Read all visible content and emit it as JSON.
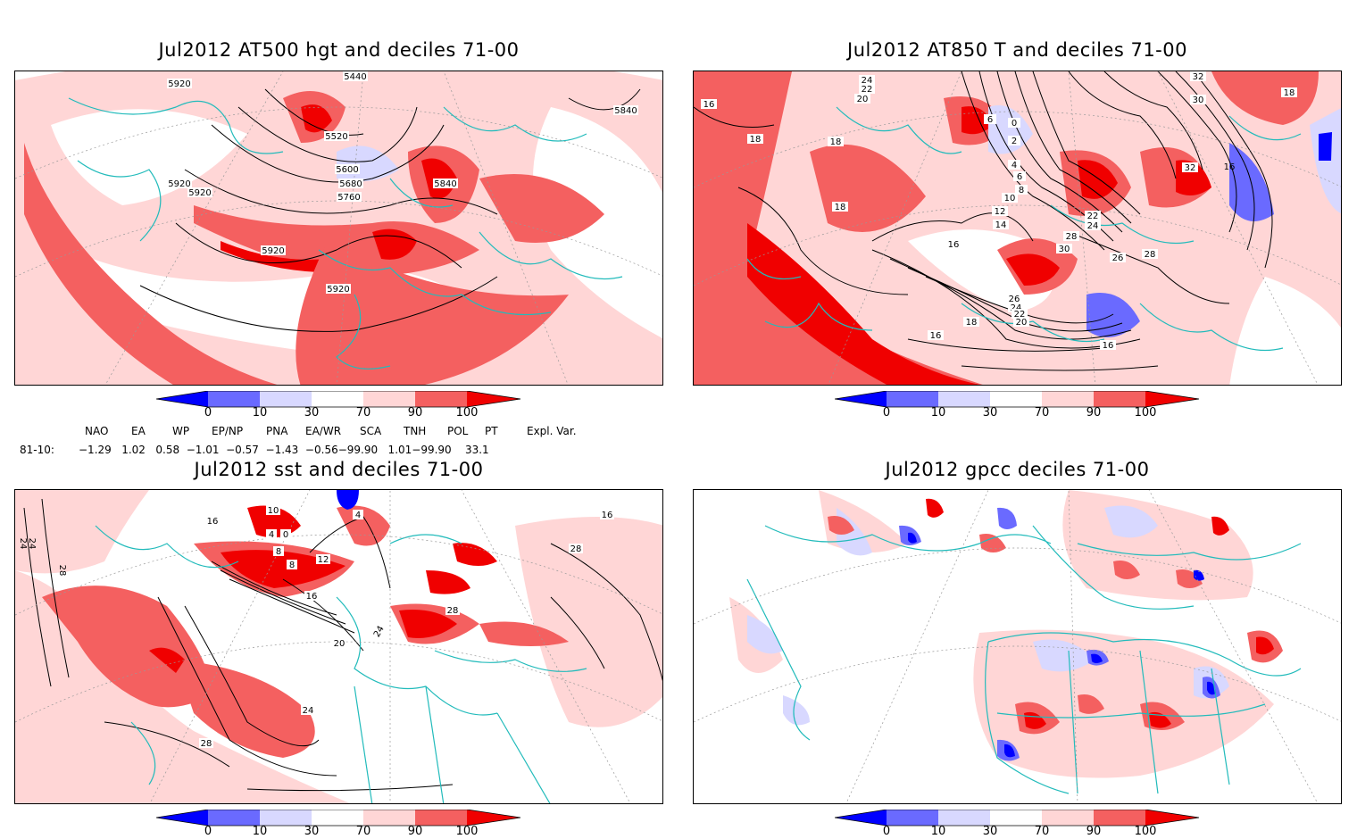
{
  "panels": [
    {
      "id": "p1",
      "title": "Jul2012 AT500 hgt and deciles 71-00",
      "contour_labels": [
        "5440",
        "5920",
        "5520",
        "5600",
        "5680",
        "5760",
        "5840",
        "5840",
        "5920",
        "5920",
        "5920",
        "5920"
      ]
    },
    {
      "id": "p2",
      "title": "Jul2012 AT850 T and deciles 71-00",
      "contour_labels": [
        "16",
        "18",
        "18",
        "18",
        "24",
        "22",
        "20",
        "6",
        "0",
        "2",
        "4",
        "6",
        "8",
        "10",
        "12",
        "14",
        "16",
        "22",
        "24",
        "28",
        "30",
        "26",
        "28",
        "26",
        "24",
        "22",
        "20",
        "18",
        "16",
        "16",
        "16",
        "32",
        "18",
        "30",
        "32"
      ]
    },
    {
      "id": "p3",
      "title": "Jul2012 sst and deciles 71-00",
      "contour_labels": [
        "24",
        "24",
        "28",
        "16",
        "10",
        "4",
        "0",
        "4",
        "8",
        "12",
        "8",
        "16",
        "20",
        "24",
        "28",
        "28",
        "24",
        "28",
        "16"
      ]
    },
    {
      "id": "p4",
      "title": "Jul2012 gpcc deciles 71-00",
      "contour_labels": []
    }
  ],
  "colorbar": {
    "ticks": [
      "0",
      "10",
      "30",
      "70",
      "90",
      "100"
    ],
    "colors": {
      "strong_neg": "#0000ff",
      "mid_neg": "#6a6aff",
      "weak_neg": "#d8d8ff",
      "neutral": "#ffffff",
      "weak_pos": "#ffd6d6",
      "mid_pos": "#f46060",
      "strong_pos": "#f00000"
    }
  },
  "land_color": "#22bbbb",
  "indices": {
    "headers": [
      "NAO",
      "EA",
      "WP",
      "EP/NP",
      "PNA",
      "EA/WR",
      "SCA",
      "TNH",
      "POL",
      "PT",
      "Expl. Var."
    ],
    "row_label": "81-10:",
    "values_line": "−1.29   1.02   0.58  −1.01  −0.57  −1.43  −0.56−99.90   1.01−99.90    33.1"
  }
}
